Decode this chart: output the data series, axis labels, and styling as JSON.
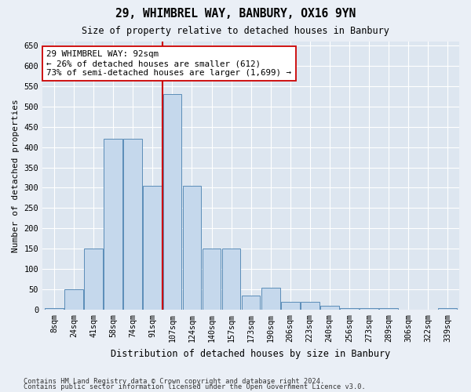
{
  "title1": "29, WHIMBREL WAY, BANBURY, OX16 9YN",
  "title2": "Size of property relative to detached houses in Banbury",
  "xlabel": "Distribution of detached houses by size in Banbury",
  "ylabel": "Number of detached properties",
  "categories": [
    "8sqm",
    "24sqm",
    "41sqm",
    "58sqm",
    "74sqm",
    "91sqm",
    "107sqm",
    "124sqm",
    "140sqm",
    "157sqm",
    "173sqm",
    "190sqm",
    "206sqm",
    "223sqm",
    "240sqm",
    "256sqm",
    "273sqm",
    "289sqm",
    "306sqm",
    "322sqm",
    "339sqm"
  ],
  "values": [
    5,
    50,
    150,
    420,
    420,
    305,
    530,
    305,
    150,
    150,
    35,
    55,
    20,
    20,
    10,
    5,
    5,
    5,
    0,
    0,
    5
  ],
  "bar_color": "#c5d8ec",
  "bar_edge_color": "#5b8db8",
  "vline_x": 5.5,
  "vline_color": "#cc0000",
  "annotation_text": "29 WHIMBREL WAY: 92sqm\n← 26% of detached houses are smaller (612)\n73% of semi-detached houses are larger (1,699) →",
  "annotation_box_color": "white",
  "annotation_box_edge_color": "#cc0000",
  "ylim": [
    0,
    660
  ],
  "yticks": [
    0,
    50,
    100,
    150,
    200,
    250,
    300,
    350,
    400,
    450,
    500,
    550,
    600,
    650
  ],
  "footer1": "Contains HM Land Registry data © Crown copyright and database right 2024.",
  "footer2": "Contains public sector information licensed under the Open Government Licence v3.0.",
  "bg_color": "#eaeff6",
  "plot_bg_color": "#dde6f0"
}
